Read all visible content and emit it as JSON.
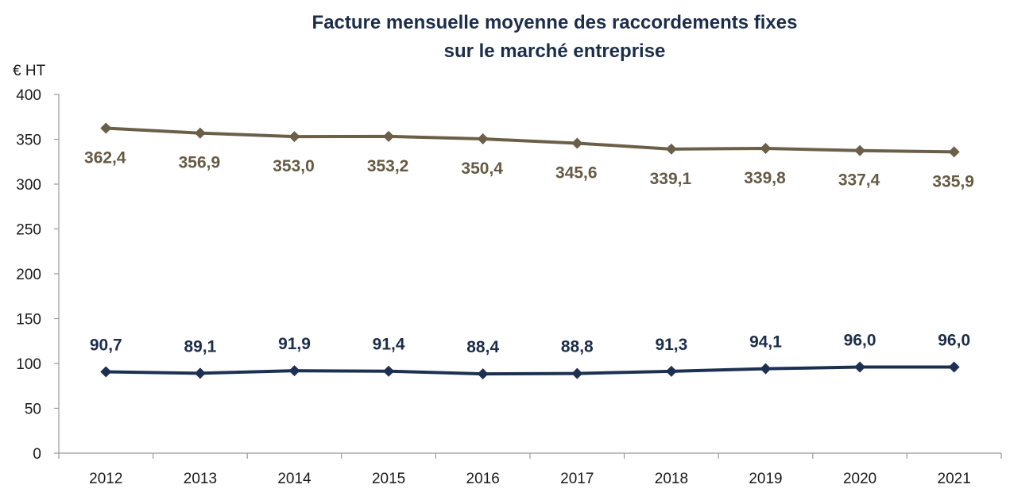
{
  "chart_data": {
    "type": "line",
    "title_lines": [
      "Facture mensuelle moyenne des raccordements fixes",
      "sur le marché entreprise"
    ],
    "ylabel": "€ HT",
    "xlabel": "",
    "ylim": [
      0,
      400
    ],
    "yticks": [
      0,
      50,
      100,
      150,
      200,
      250,
      300,
      350,
      400
    ],
    "categories": [
      "2012",
      "2013",
      "2014",
      "2015",
      "2016",
      "2017",
      "2018",
      "2019",
      "2020",
      "2021"
    ],
    "grid": false,
    "legend": "none",
    "series": [
      {
        "values": [
          362.4,
          356.9,
          353.0,
          353.2,
          350.4,
          345.6,
          339.1,
          339.8,
          337.4,
          335.9
        ],
        "labels": [
          "362,4",
          "356,9",
          "353,0",
          "353,2",
          "350,4",
          "345,6",
          "339,1",
          "339,8",
          "337,4",
          "335,9"
        ],
        "label_position": "below",
        "color": "#6b5f48",
        "marker": "diamond"
      },
      {
        "values": [
          90.7,
          89.1,
          91.9,
          91.4,
          88.4,
          88.8,
          91.3,
          94.1,
          96.0,
          96.0
        ],
        "labels": [
          "90,7",
          "89,1",
          "91,9",
          "91,4",
          "88,4",
          "88,8",
          "91,3",
          "94,1",
          "96,0",
          "96,0"
        ],
        "label_position": "above",
        "color": "#1c3152",
        "marker": "diamond"
      }
    ]
  }
}
